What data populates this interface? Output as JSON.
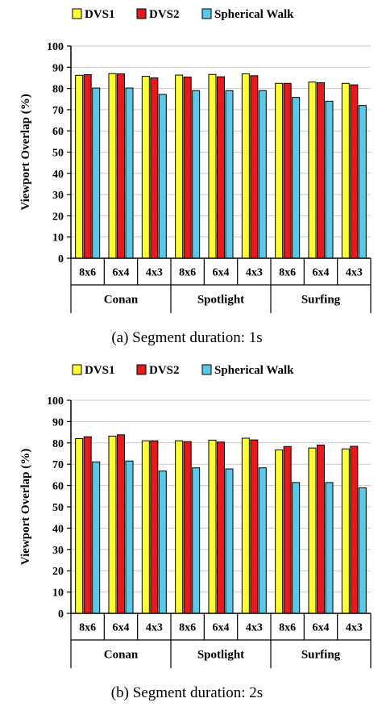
{
  "chart_data": [
    {
      "type": "bar",
      "caption": "(a) Segment duration: 1s",
      "ylabel": "Viewport Overlap (%)",
      "ylim": [
        0,
        100
      ],
      "yticks": [
        0,
        10,
        20,
        30,
        40,
        50,
        60,
        70,
        80,
        90,
        100
      ],
      "grid": true,
      "legend_position": "top",
      "groups": [
        "Conan",
        "Spotlight",
        "Surfing"
      ],
      "categories": [
        "8x6",
        "6x4",
        "4x3",
        "8x6",
        "6x4",
        "4x3",
        "8x6",
        "6x4",
        "4x3"
      ],
      "series": [
        {
          "name": "DVS1",
          "color": "#ffff33",
          "values": [
            86.2,
            87.0,
            85.7,
            86.3,
            86.6,
            86.9,
            82.4,
            83.0,
            82.4
          ]
        },
        {
          "name": "DVS2",
          "color": "#e41a1c",
          "values": [
            86.5,
            86.9,
            85.0,
            85.4,
            85.5,
            86.0,
            82.4,
            82.7,
            81.7
          ]
        },
        {
          "name": "Spherical Walk",
          "color": "#5bc8e8",
          "values": [
            80.2,
            80.2,
            77.2,
            79.0,
            79.0,
            79.0,
            75.8,
            74.0,
            72.0
          ]
        }
      ]
    },
    {
      "type": "bar",
      "caption": "(b) Segment duration: 2s",
      "ylabel": "Viewport Overlap (%)",
      "ylim": [
        0,
        100
      ],
      "yticks": [
        0,
        10,
        20,
        30,
        40,
        50,
        60,
        70,
        80,
        90,
        100
      ],
      "grid": true,
      "legend_position": "top",
      "groups": [
        "Conan",
        "Spotlight",
        "Surfing"
      ],
      "categories": [
        "8x6",
        "6x4",
        "4x3",
        "8x6",
        "6x4",
        "4x3",
        "8x6",
        "6x4",
        "4x3"
      ],
      "series": [
        {
          "name": "DVS1",
          "color": "#ffff33",
          "values": [
            82.0,
            83.2,
            81.0,
            81.0,
            81.3,
            82.2,
            76.7,
            77.6,
            77.2
          ]
        },
        {
          "name": "DVS2",
          "color": "#e41a1c",
          "values": [
            82.9,
            83.8,
            81.0,
            80.6,
            80.4,
            81.4,
            78.3,
            79.0,
            78.4
          ]
        },
        {
          "name": "Spherical Walk",
          "color": "#5bc8e8",
          "values": [
            71.1,
            71.5,
            66.8,
            68.3,
            67.8,
            68.3,
            61.4,
            61.4,
            58.9
          ]
        }
      ]
    }
  ]
}
